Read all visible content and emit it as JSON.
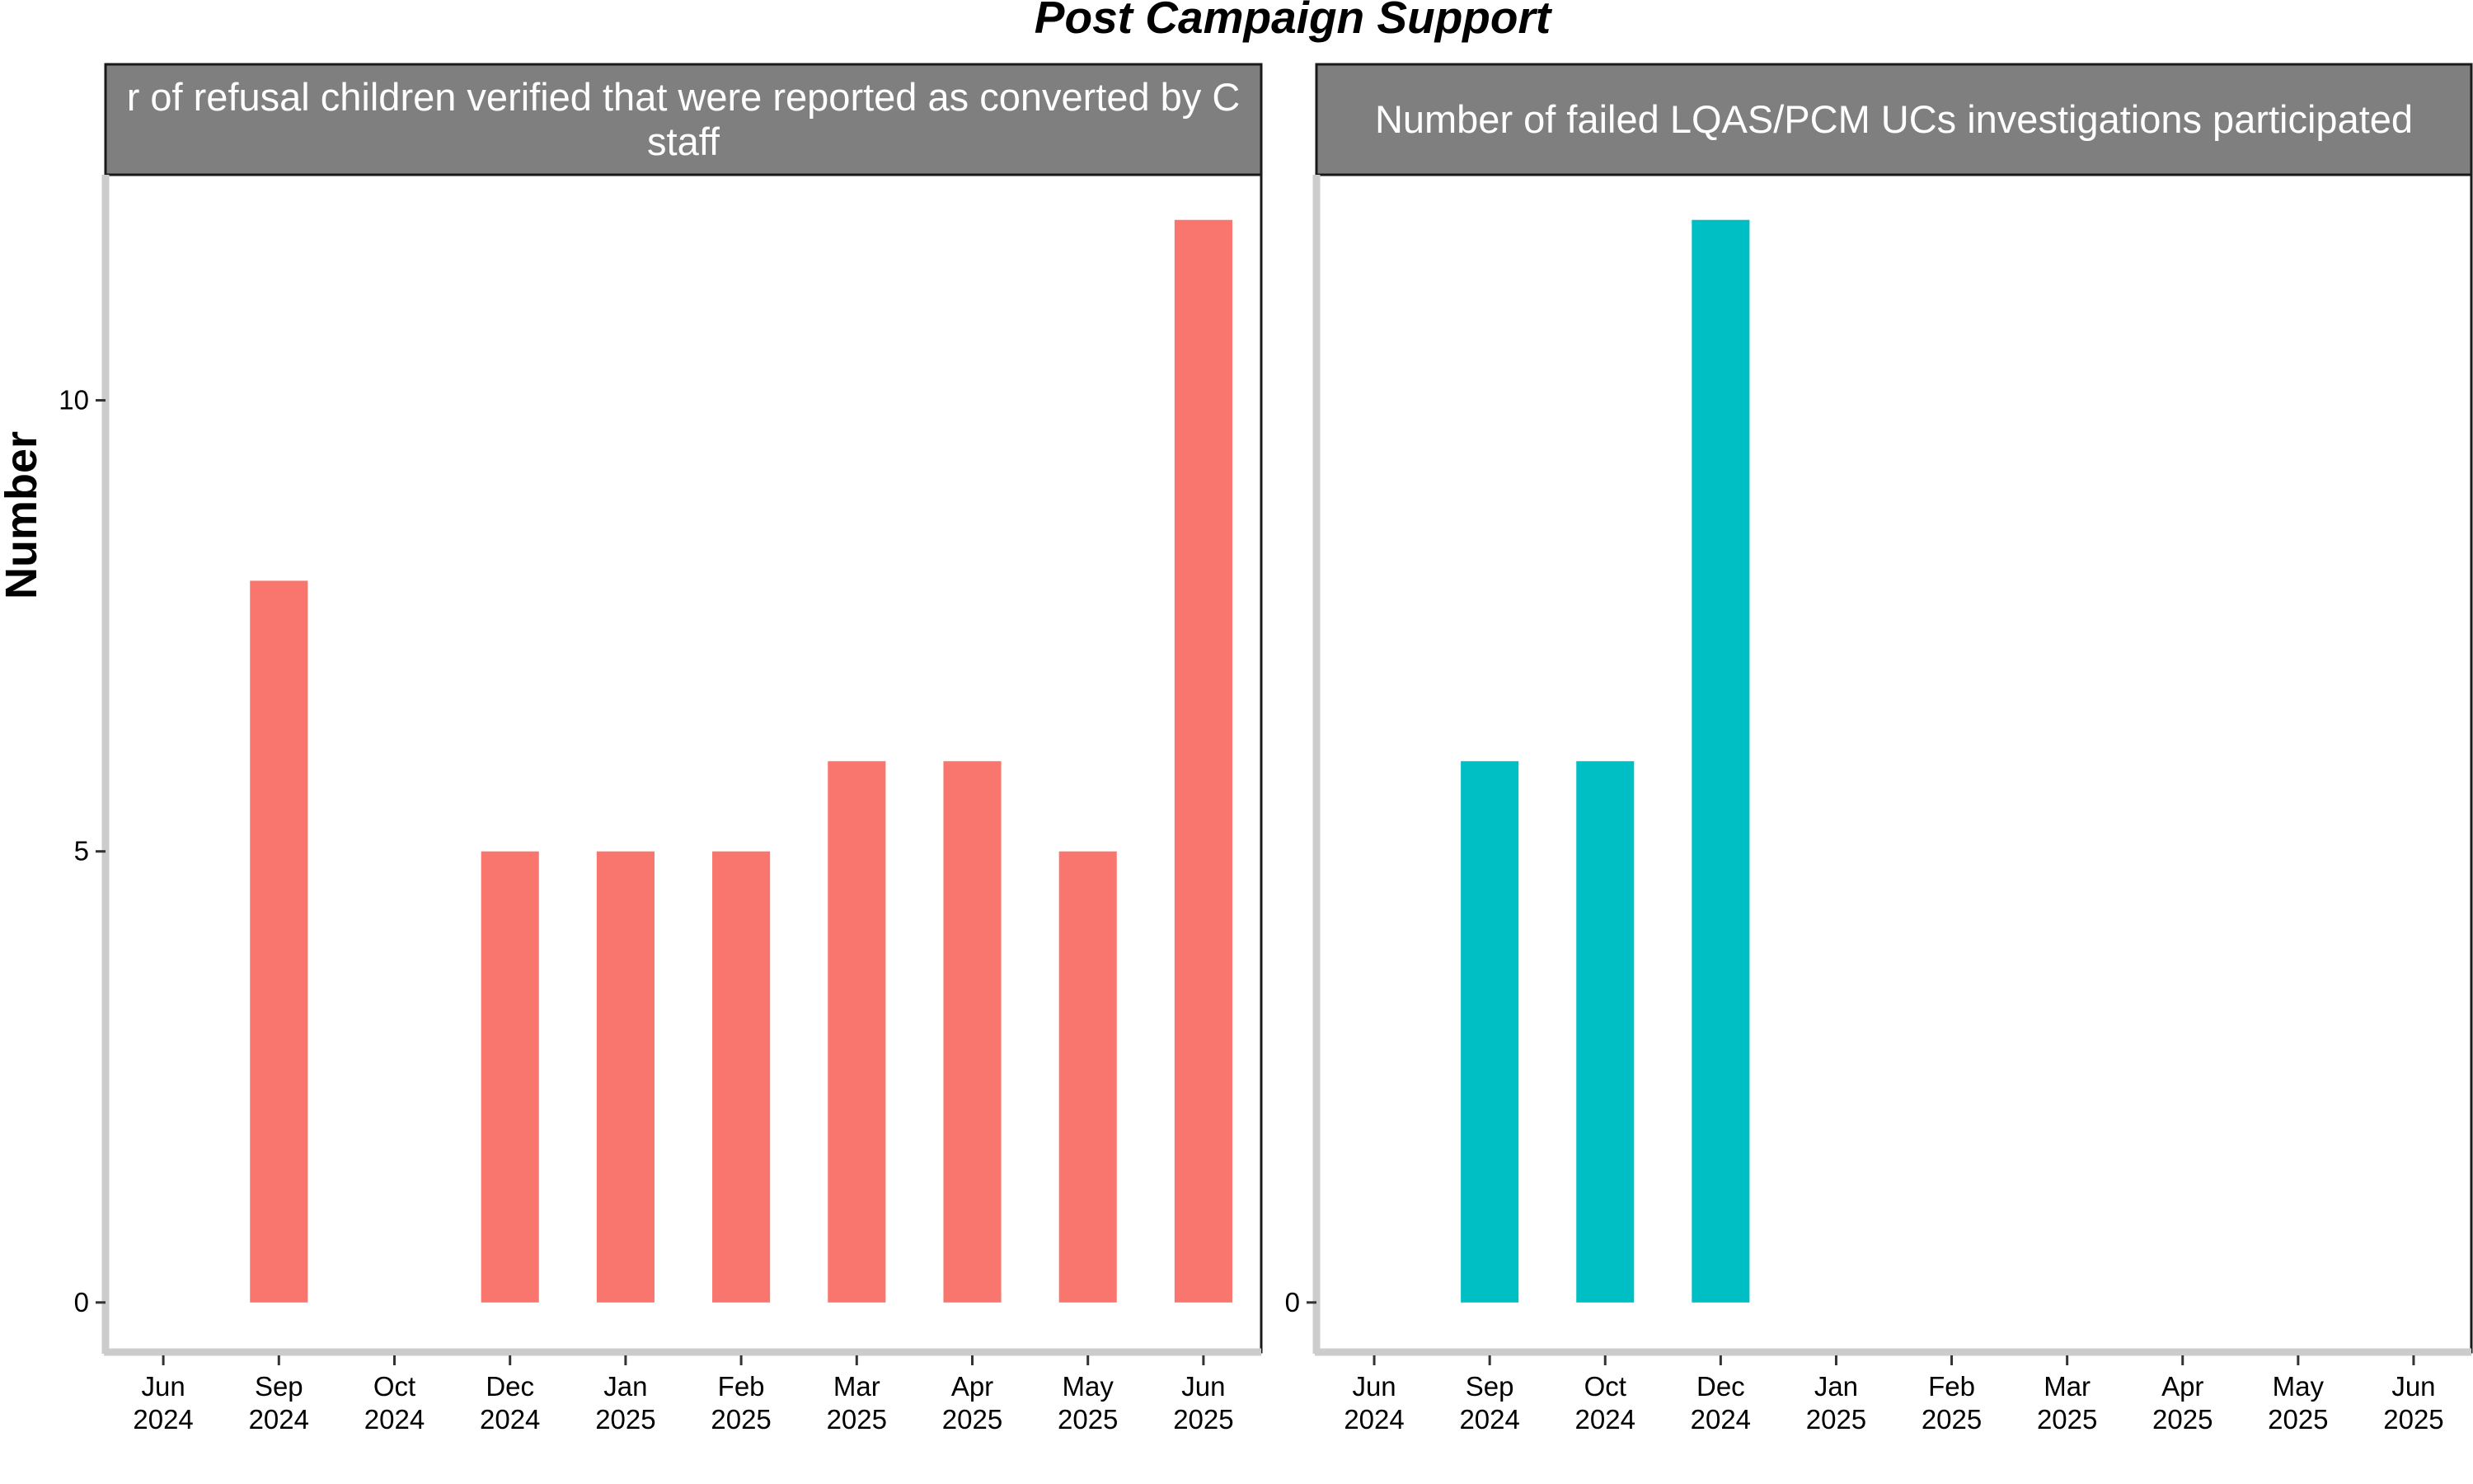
{
  "chart_data": {
    "type": "bar",
    "title": "Post Campaign Support",
    "ylabel": "Number",
    "ylim": [
      -0.55,
      12.5
    ],
    "yticks": [
      0,
      5,
      10
    ],
    "grid": false,
    "legend": "none",
    "panels": [
      {
        "strip_lines": [
          "r of refusal children verified that were reported as converted by C",
          "staff"
        ],
        "color": "#F8766D",
        "show_y_ticks": true,
        "x_ticks": [
          {
            "month": "Jun",
            "year": "2024"
          },
          {
            "month": "Sep",
            "year": "2024"
          },
          {
            "month": "Oct",
            "year": "2024"
          },
          {
            "month": "Dec",
            "year": "2024"
          },
          {
            "month": "Jan",
            "year": "2025"
          },
          {
            "month": "Feb",
            "year": "2025"
          },
          {
            "month": "Mar",
            "year": "2025"
          },
          {
            "month": "Apr",
            "year": "2025"
          },
          {
            "month": "May",
            "year": "2025"
          },
          {
            "month": "Jun",
            "year": "2025"
          }
        ],
        "values": [
          null,
          8,
          null,
          5,
          5,
          5,
          6,
          6,
          5,
          12
        ]
      },
      {
        "strip_lines": [
          "Number of failed LQAS/PCM UCs investigations participated"
        ],
        "color": "#00BFC4",
        "show_y_ticks": true,
        "y_tick_subset": [
          0
        ],
        "x_ticks": [
          {
            "month": "Jun",
            "year": "2024"
          },
          {
            "month": "Sep",
            "year": "2024"
          },
          {
            "month": "Oct",
            "year": "2024"
          },
          {
            "month": "Dec",
            "year": "2024"
          },
          {
            "month": "Jan",
            "year": "2025"
          },
          {
            "month": "Feb",
            "year": "2025"
          },
          {
            "month": "Mar",
            "year": "2025"
          },
          {
            "month": "Apr",
            "year": "2025"
          },
          {
            "month": "May",
            "year": "2025"
          },
          {
            "month": "Jun",
            "year": "2025"
          }
        ],
        "values": [
          null,
          6,
          6,
          12,
          null,
          null,
          null,
          null,
          null,
          null
        ]
      }
    ]
  }
}
